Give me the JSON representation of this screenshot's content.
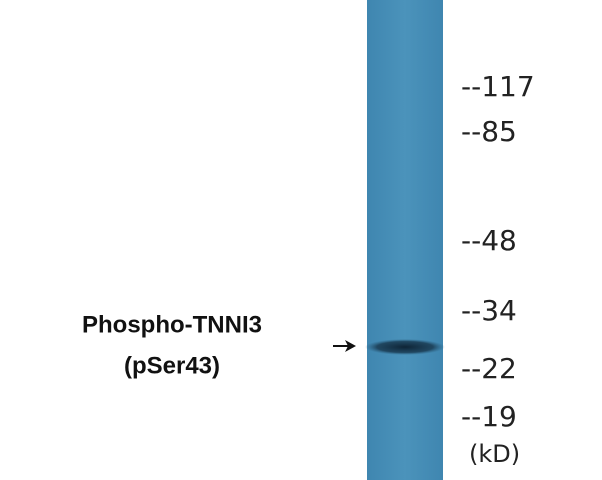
{
  "protein_label": {
    "lines": [
      "Phospho-TNNI3",
      "(pSer43)"
    ]
  },
  "markers": [
    "--117",
    "--85",
    "--48",
    "--34",
    "--22",
    "--19"
  ],
  "unit": "(kD)"
}
